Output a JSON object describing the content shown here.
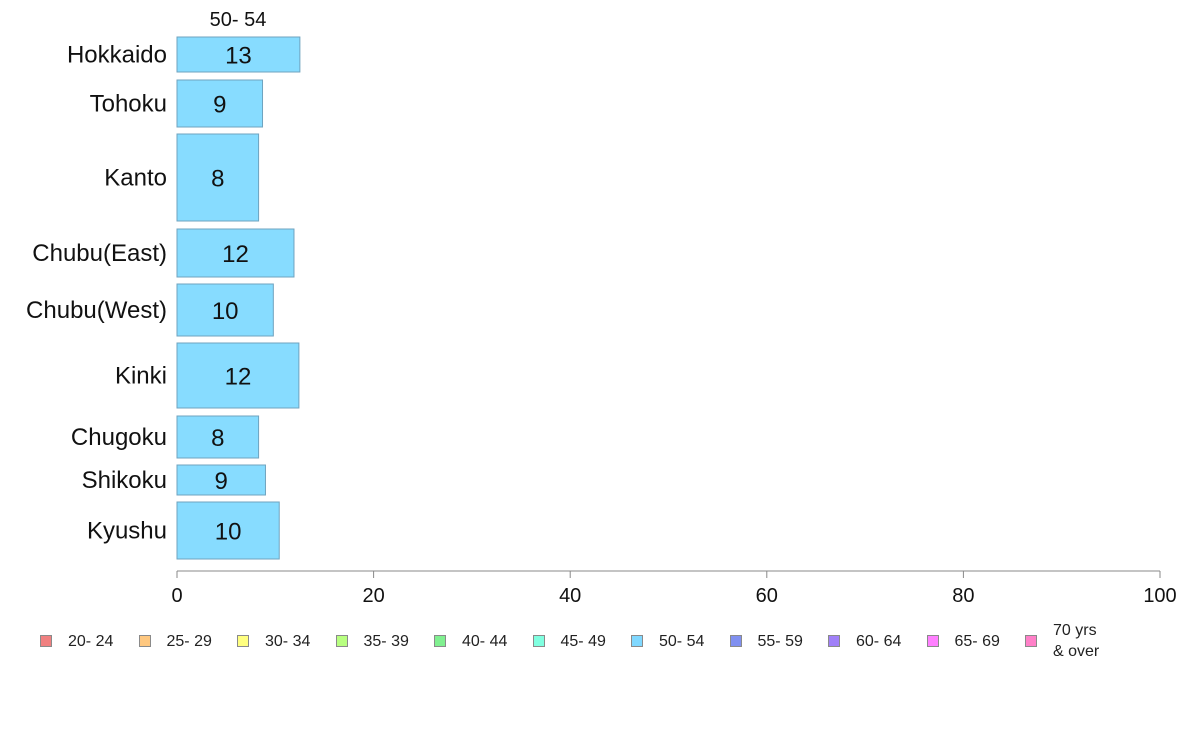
{
  "chart_data": {
    "type": "bar",
    "orientation": "horizontal",
    "column_header": "50- 54",
    "categories": [
      "Hokkaido",
      "Tohoku",
      "Kanto",
      "Chubu(East)",
      "Chubu(West)",
      "Kinki",
      "Chugoku",
      "Shikoku",
      "Kyushu"
    ],
    "values": [
      12.5,
      8.7,
      8.3,
      11.9,
      9.8,
      12.4,
      8.3,
      9.0,
      10.4
    ],
    "value_labels": [
      "13",
      "9",
      "8",
      "12",
      "10",
      "12",
      "8",
      "9",
      "10"
    ],
    "bar_color": "#87dcff",
    "bar_border": "#6fa3bf",
    "xlim": [
      0,
      100
    ],
    "xticks": [
      0,
      20,
      40,
      60,
      80,
      100
    ],
    "xtick_labels": [
      "0",
      "20",
      "40",
      "60",
      "80",
      "100"
    ],
    "grid": false,
    "legend_position": "bottom",
    "legend": [
      {
        "label": "20- 24",
        "color": "#f08080"
      },
      {
        "label": "25- 29",
        "color": "#ffc880"
      },
      {
        "label": "30- 34",
        "color": "#ffff80"
      },
      {
        "label": "35- 39",
        "color": "#b8ff80"
      },
      {
        "label": "40- 44",
        "color": "#80f090"
      },
      {
        "label": "45- 49",
        "color": "#80ffe0"
      },
      {
        "label": "50- 54",
        "color": "#80d8ff"
      },
      {
        "label": "55- 59",
        "color": "#8090f0"
      },
      {
        "label": "60- 64",
        "color": "#a080f8"
      },
      {
        "label": "65- 69",
        "color": "#ff80ff"
      },
      {
        "label": "70 yrs\n& over",
        "color": "#ff80c8"
      }
    ]
  }
}
